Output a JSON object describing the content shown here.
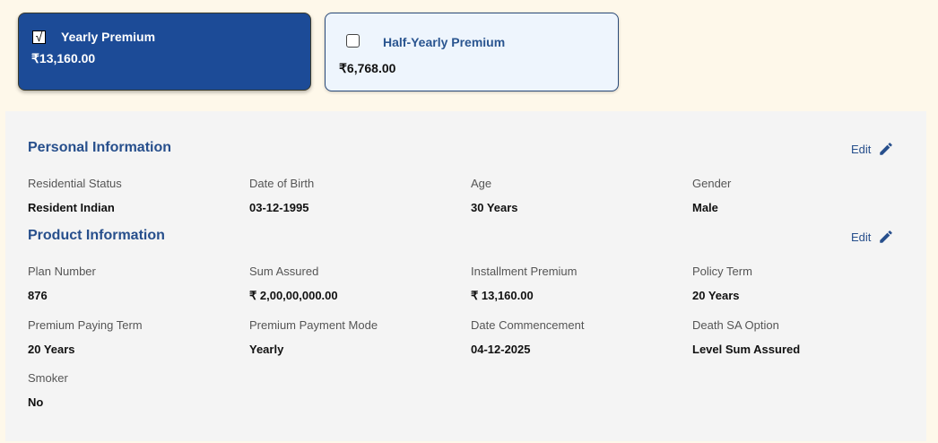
{
  "premium_options": [
    {
      "label": "Yearly Premium",
      "amount": "₹13,160.00",
      "checked": true,
      "check_glyph": "√"
    },
    {
      "label": "Half-Yearly Premium",
      "amount": "₹6,768.00",
      "checked": false
    }
  ],
  "personal": {
    "title": "Personal Information",
    "edit_label": "Edit",
    "fields": [
      {
        "label": "Residential Status",
        "value": "Resident Indian"
      },
      {
        "label": "Date of Birth",
        "value": "03-12-1995"
      },
      {
        "label": "Age",
        "value": "30 Years"
      },
      {
        "label": "Gender",
        "value": "Male"
      }
    ]
  },
  "product": {
    "title": "Product Information",
    "edit_label": "Edit",
    "fields": [
      {
        "label": "Plan Number",
        "value": "876"
      },
      {
        "label": "Sum Assured",
        "value": "₹ 2,00,00,000.00"
      },
      {
        "label": "Installment Premium",
        "value": "₹ 13,160.00"
      },
      {
        "label": "Policy Term",
        "value": "20 Years"
      },
      {
        "label": "Premium Paying Term",
        "value": "20 Years"
      },
      {
        "label": "Premium Payment Mode",
        "value": "Yearly"
      },
      {
        "label": "Date Commencement",
        "value": "04-12-2025"
      },
      {
        "label": "Death SA Option",
        "value": "Level Sum Assured"
      },
      {
        "label": "Smoker",
        "value": "No"
      }
    ]
  },
  "colors": {
    "primary": "#1c4b97",
    "accent_text": "#274f8c",
    "page_bg": "#fef8ea",
    "panel_bg": "#f4f4f4"
  }
}
